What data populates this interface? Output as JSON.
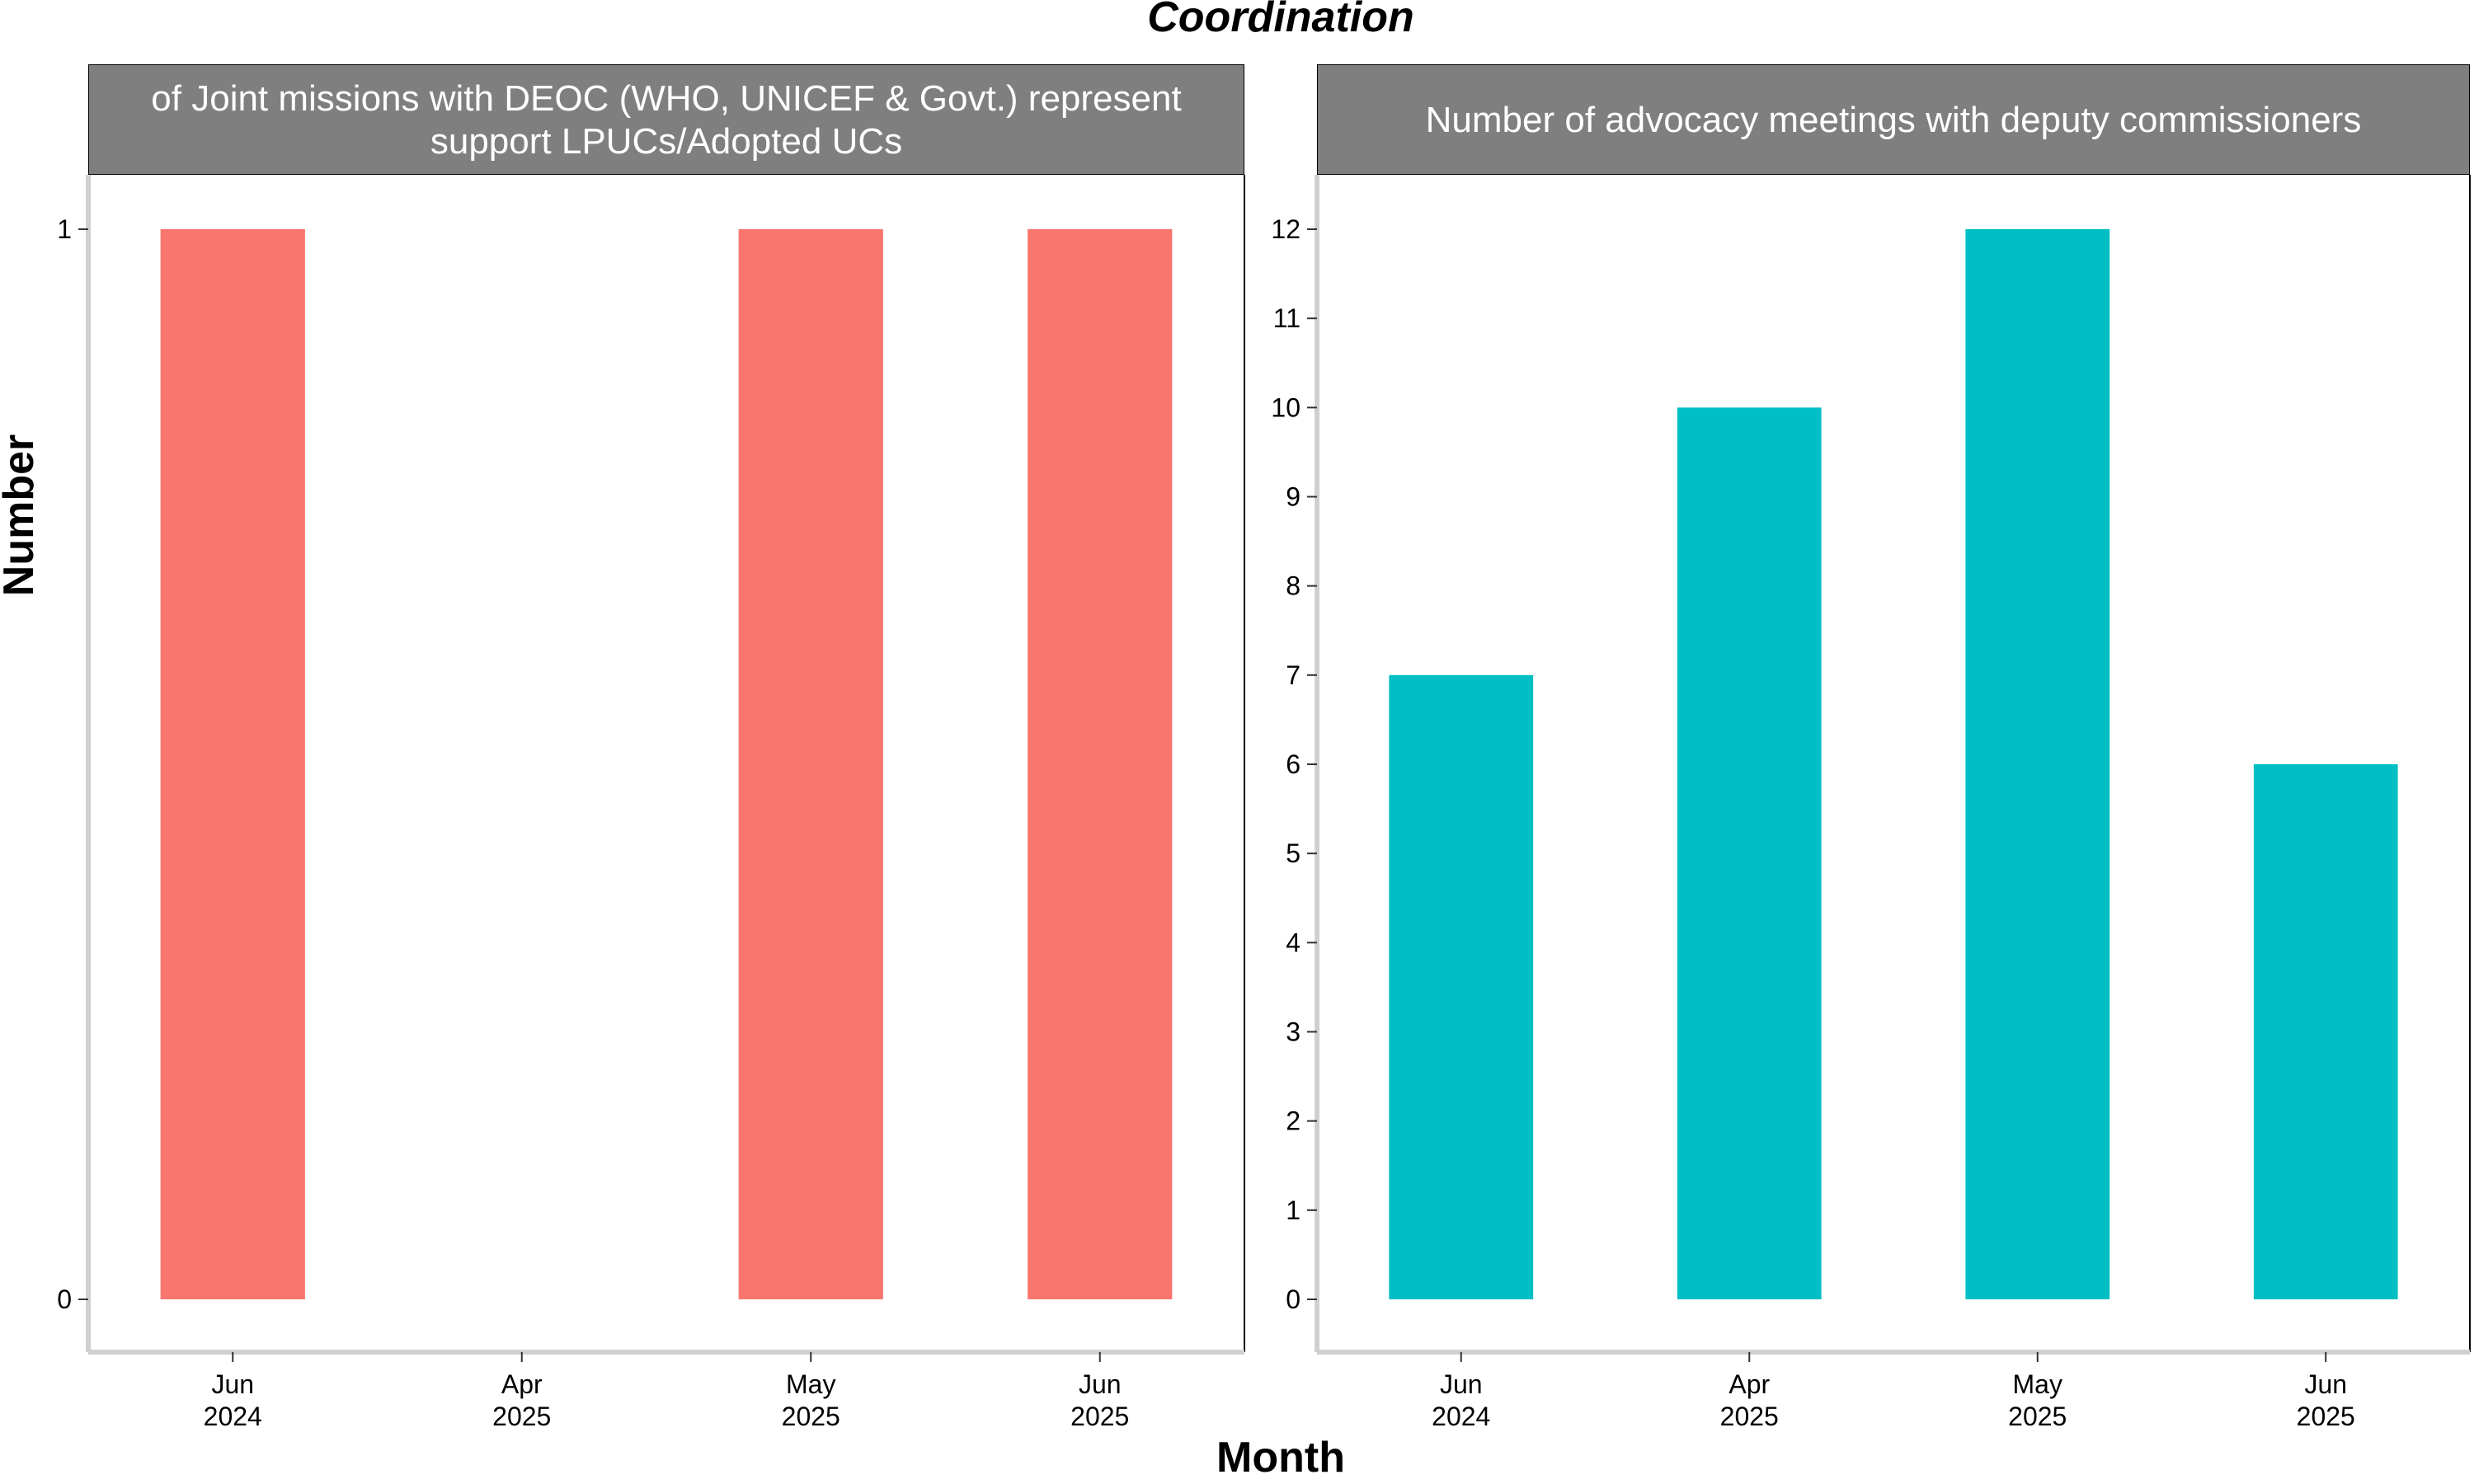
{
  "figure": {
    "title": "Coordination",
    "xlabel": "Month",
    "ylabel": "Number"
  },
  "chart_data": [
    {
      "type": "bar",
      "title_lines": [
        "of Joint missions with DEOC (WHO, UNICEF & Govt.) represent",
        "support LPUCs/Adopted UCs"
      ],
      "categories": [
        "Jun 2024",
        "Apr 2025",
        "May 2025",
        "Jun 2025"
      ],
      "category_lines": [
        [
          "Jun",
          "2024"
        ],
        [
          "Apr",
          "2025"
        ],
        [
          "May",
          "2025"
        ],
        [
          "Jun",
          "2025"
        ]
      ],
      "values": [
        1,
        0,
        1,
        1
      ],
      "ylim": [
        0,
        1
      ],
      "yticks": [
        0,
        1
      ],
      "color": "#F8766D",
      "xlabel": "Month",
      "ylabel": "Number"
    },
    {
      "type": "bar",
      "title_lines": [
        "Number of advocacy meetings with deputy commissioners"
      ],
      "categories": [
        "Jun 2024",
        "Apr 2025",
        "May 2025",
        "Jun 2025"
      ],
      "category_lines": [
        [
          "Jun",
          "2024"
        ],
        [
          "Apr",
          "2025"
        ],
        [
          "May",
          "2025"
        ],
        [
          "Jun",
          "2025"
        ]
      ],
      "values": [
        7,
        10,
        12,
        6
      ],
      "ylim": [
        0,
        12
      ],
      "yticks": [
        0,
        1,
        2,
        3,
        4,
        5,
        6,
        7,
        8,
        9,
        10,
        11,
        12
      ],
      "color": "#00BFC4",
      "xlabel": "Month",
      "ylabel": "Number"
    }
  ]
}
